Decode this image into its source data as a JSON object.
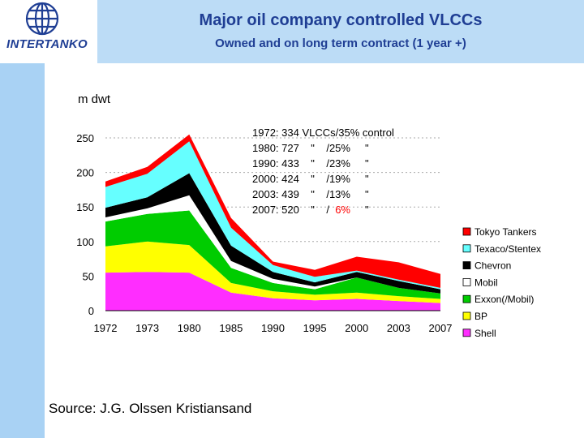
{
  "header": {
    "title": "Major oil company controlled VLCCs",
    "subtitle": "Owned and on long term contract (1 year +)",
    "logo_text": "INTERTANKO"
  },
  "source": "Source: J.G. Olssen Kristiansand",
  "chart_data": {
    "type": "area",
    "stacked": true,
    "ylabel": "m dwt",
    "ylim": [
      0,
      250
    ],
    "yticks": [
      0,
      50,
      100,
      150,
      200,
      250
    ],
    "categories": [
      "1972",
      "1973",
      "1980",
      "1985",
      "1990",
      "1995",
      "2000",
      "2003",
      "2007"
    ],
    "series": [
      {
        "name": "Shell",
        "color": "#ff2dff",
        "values": [
          55,
          56,
          55,
          26,
          18,
          15,
          17,
          14,
          11
        ]
      },
      {
        "name": "BP",
        "color": "#ffff00",
        "values": [
          38,
          44,
          40,
          14,
          10,
          8,
          9,
          7,
          6
        ]
      },
      {
        "name": "Exxon(/Mobil)",
        "color": "#00cc00",
        "values": [
          36,
          40,
          50,
          22,
          12,
          8,
          22,
          12,
          8
        ]
      },
      {
        "name": "Mobil",
        "color": "#ffffff",
        "values": [
          6,
          8,
          22,
          10,
          6,
          4,
          0,
          0,
          0
        ]
      },
      {
        "name": "Chevron",
        "color": "#000000",
        "values": [
          14,
          16,
          32,
          22,
          10,
          6,
          8,
          10,
          6
        ]
      },
      {
        "name": "Texaco/Stentex",
        "color": "#66ffff",
        "values": [
          30,
          34,
          46,
          26,
          10,
          8,
          2,
          2,
          2
        ]
      },
      {
        "name": "Tokyo Tankers",
        "color": "#ff0000",
        "values": [
          8,
          10,
          10,
          14,
          5,
          10,
          20,
          25,
          20
        ]
      }
    ],
    "annotations": [
      {
        "text": "1972: 334 VLCCs/35% control",
        "red": ""
      },
      {
        "text": "1980: 727    \"    /25%     \"",
        "red": ""
      },
      {
        "text": "1990: 433    \"    /23%     \"",
        "red": ""
      },
      {
        "text": "2000: 424    \"    /19%     \"",
        "red": ""
      },
      {
        "text": "2003: 439    \"    /13%     \"",
        "red": ""
      },
      {
        "text": "2007: 520    \"    /  ",
        "red": "6%",
        "tail": "     \""
      }
    ],
    "legend_position": "right"
  }
}
